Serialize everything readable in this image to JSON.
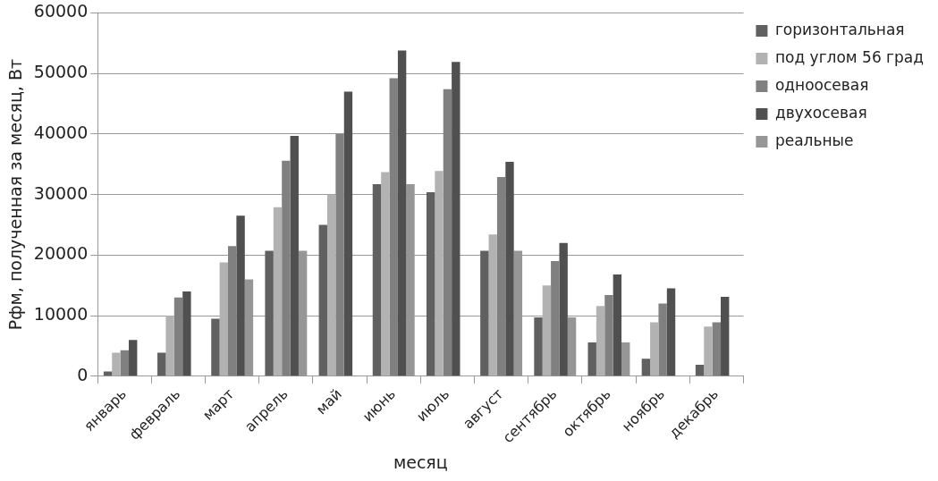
{
  "chart_data": {
    "type": "bar",
    "xlabel": "месяц",
    "ylabel": "Рфм, полученная за месяц, Вт",
    "categories": [
      "январь",
      "февраль",
      "март",
      "апрель",
      "май",
      "июнь",
      "июль",
      "август",
      "сентябрь",
      "октябрь",
      "ноябрь",
      "декабрь"
    ],
    "series": [
      {
        "name": "горизонтальная",
        "color": "#606060",
        "values": [
          800,
          3900,
          9500,
          20700,
          25000,
          31700,
          30400,
          20700,
          9700,
          5600,
          2900,
          1900
        ]
      },
      {
        "name": "под углом 56 град",
        "color": "#b2b2b2",
        "values": [
          3900,
          10000,
          18800,
          27900,
          30000,
          33700,
          33900,
          23400,
          15000,
          11600,
          8900,
          8200
        ]
      },
      {
        "name": "одноосевая",
        "color": "#808080",
        "values": [
          4300,
          13000,
          21500,
          35600,
          40000,
          49200,
          47400,
          32900,
          19000,
          13400,
          12000,
          8900
        ]
      },
      {
        "name": "двухосевая",
        "color": "#505050",
        "values": [
          6000,
          14000,
          26500,
          39700,
          47000,
          53800,
          51900,
          35400,
          22000,
          16800,
          14500,
          13100
        ]
      },
      {
        "name": "реальные",
        "color": "#969696",
        "values": [
          null,
          null,
          16000,
          20700,
          null,
          31700,
          null,
          20700,
          9700,
          5600,
          null,
          null
        ]
      }
    ],
    "ylim": [
      0,
      60000
    ],
    "yticks": [
      0,
      10000,
      20000,
      30000,
      40000,
      50000,
      60000
    ],
    "grid": "y",
    "legend": "top right"
  }
}
